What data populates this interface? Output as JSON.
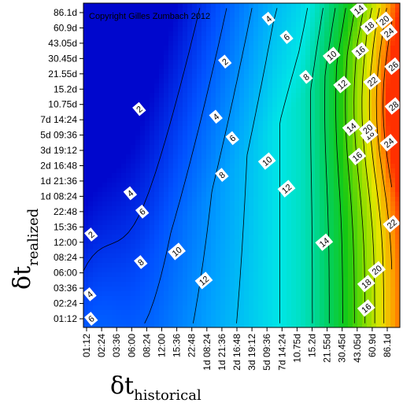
{
  "chart_data": {
    "type": "heatmap",
    "title": "",
    "copyright": "Copyright Gilles Zumbach 2012",
    "xlabel": {
      "symbol": "δt",
      "subscript": "historical"
    },
    "ylabel": {
      "symbol": "δt",
      "subscript": "realized"
    },
    "x_ticks": [
      "01:12",
      "02:24",
      "03:36",
      "06:00",
      "08:24",
      "12:00",
      "15:36",
      "22:48",
      "1d 08:24",
      "1d 21:36",
      "2d 16:48",
      "3d 19:12",
      "5d 09:36",
      "7d 14:24",
      "10.75d",
      "15.2d",
      "21.55d",
      "30.45d",
      "43.05d",
      "60.9d",
      "86.1d"
    ],
    "y_ticks": [
      "01:12",
      "02:24",
      "03:36",
      "06:00",
      "08:24",
      "12:00",
      "15:36",
      "22:48",
      "1d 08:24",
      "1d 21:36",
      "2d 16:48",
      "3d 19:12",
      "5d 09:36",
      "7d 14:24",
      "10.75d",
      "15.2d",
      "21.55d",
      "30.45d",
      "43.05d",
      "60.9d",
      "86.1d"
    ],
    "z_range": [
      0,
      30
    ],
    "colormap": [
      "#0000c8",
      "#0050ff",
      "#00a0ff",
      "#00e6e6",
      "#00d26e",
      "#14c814",
      "#82dc00",
      "#e6e600",
      "#ff9600",
      "#ff1e00"
    ],
    "contour_levels": [
      2,
      4,
      6,
      8,
      10,
      12,
      14,
      16,
      18,
      20,
      22,
      24,
      26,
      28
    ],
    "contour_labels": [
      {
        "text": "2",
        "xi": 3.5,
        "yi": 13.7
      },
      {
        "text": "2",
        "xi": 9.2,
        "yi": 16.8
      },
      {
        "text": "2",
        "xi": 0.3,
        "yi": 5.5
      },
      {
        "text": "4",
        "xi": 2.9,
        "yi": 8.2
      },
      {
        "text": "4",
        "xi": 8.6,
        "yi": 13.2
      },
      {
        "text": "4",
        "xi": 12.1,
        "yi": 19.6
      },
      {
        "text": "4",
        "xi": 0.1,
        "yi": 1.6
      },
      {
        "text": "6",
        "xi": 3.7,
        "yi": 7.0
      },
      {
        "text": "6",
        "xi": 9.7,
        "yi": 11.8
      },
      {
        "text": "6",
        "xi": 13.3,
        "yi": 18.4
      },
      {
        "text": "6",
        "xi": 0.3,
        "yi": 0.0
      },
      {
        "text": "8",
        "xi": 3.6,
        "yi": 3.7
      },
      {
        "text": "8",
        "xi": 9.0,
        "yi": 9.4
      },
      {
        "text": "8",
        "xi": 14.6,
        "yi": 15.8
      },
      {
        "text": "10",
        "xi": 6.0,
        "yi": 4.4
      },
      {
        "text": "10",
        "xi": 12.0,
        "yi": 10.3
      },
      {
        "text": "10",
        "xi": 16.3,
        "yi": 17.2
      },
      {
        "text": "12",
        "xi": 7.8,
        "yi": 2.5
      },
      {
        "text": "12",
        "xi": 13.3,
        "yi": 8.5
      },
      {
        "text": "12",
        "xi": 17.0,
        "yi": 15.3
      },
      {
        "text": "14",
        "xi": 15.8,
        "yi": 5.0
      },
      {
        "text": "14",
        "xi": 17.6,
        "yi": 12.5
      },
      {
        "text": "14",
        "xi": 18.1,
        "yi": 20.3
      },
      {
        "text": "16",
        "xi": 18.0,
        "yi": 10.6
      },
      {
        "text": "16",
        "xi": 18.2,
        "yi": 17.5
      },
      {
        "text": "16",
        "xi": 18.6,
        "yi": 0.7
      },
      {
        "text": "18",
        "xi": 18.8,
        "yi": 12.0
      },
      {
        "text": "18",
        "xi": 18.8,
        "yi": 19.1
      },
      {
        "text": "18",
        "xi": 18.6,
        "yi": 2.3
      },
      {
        "text": "20",
        "xi": 18.7,
        "yi": 12.4
      },
      {
        "text": "20",
        "xi": 19.8,
        "yi": 19.5
      },
      {
        "text": "20",
        "xi": 19.3,
        "yi": 3.2
      },
      {
        "text": "22",
        "xi": 19.0,
        "yi": 15.5
      },
      {
        "text": "22",
        "xi": 20.3,
        "yi": 6.2
      },
      {
        "text": "24",
        "xi": 20.1,
        "yi": 11.5
      },
      {
        "text": "24",
        "xi": 20.1,
        "yi": 18.7
      },
      {
        "text": "26",
        "xi": 20.4,
        "yi": 16.5
      },
      {
        "text": "28",
        "xi": 20.6,
        "yi": 13.9
      }
    ]
  }
}
